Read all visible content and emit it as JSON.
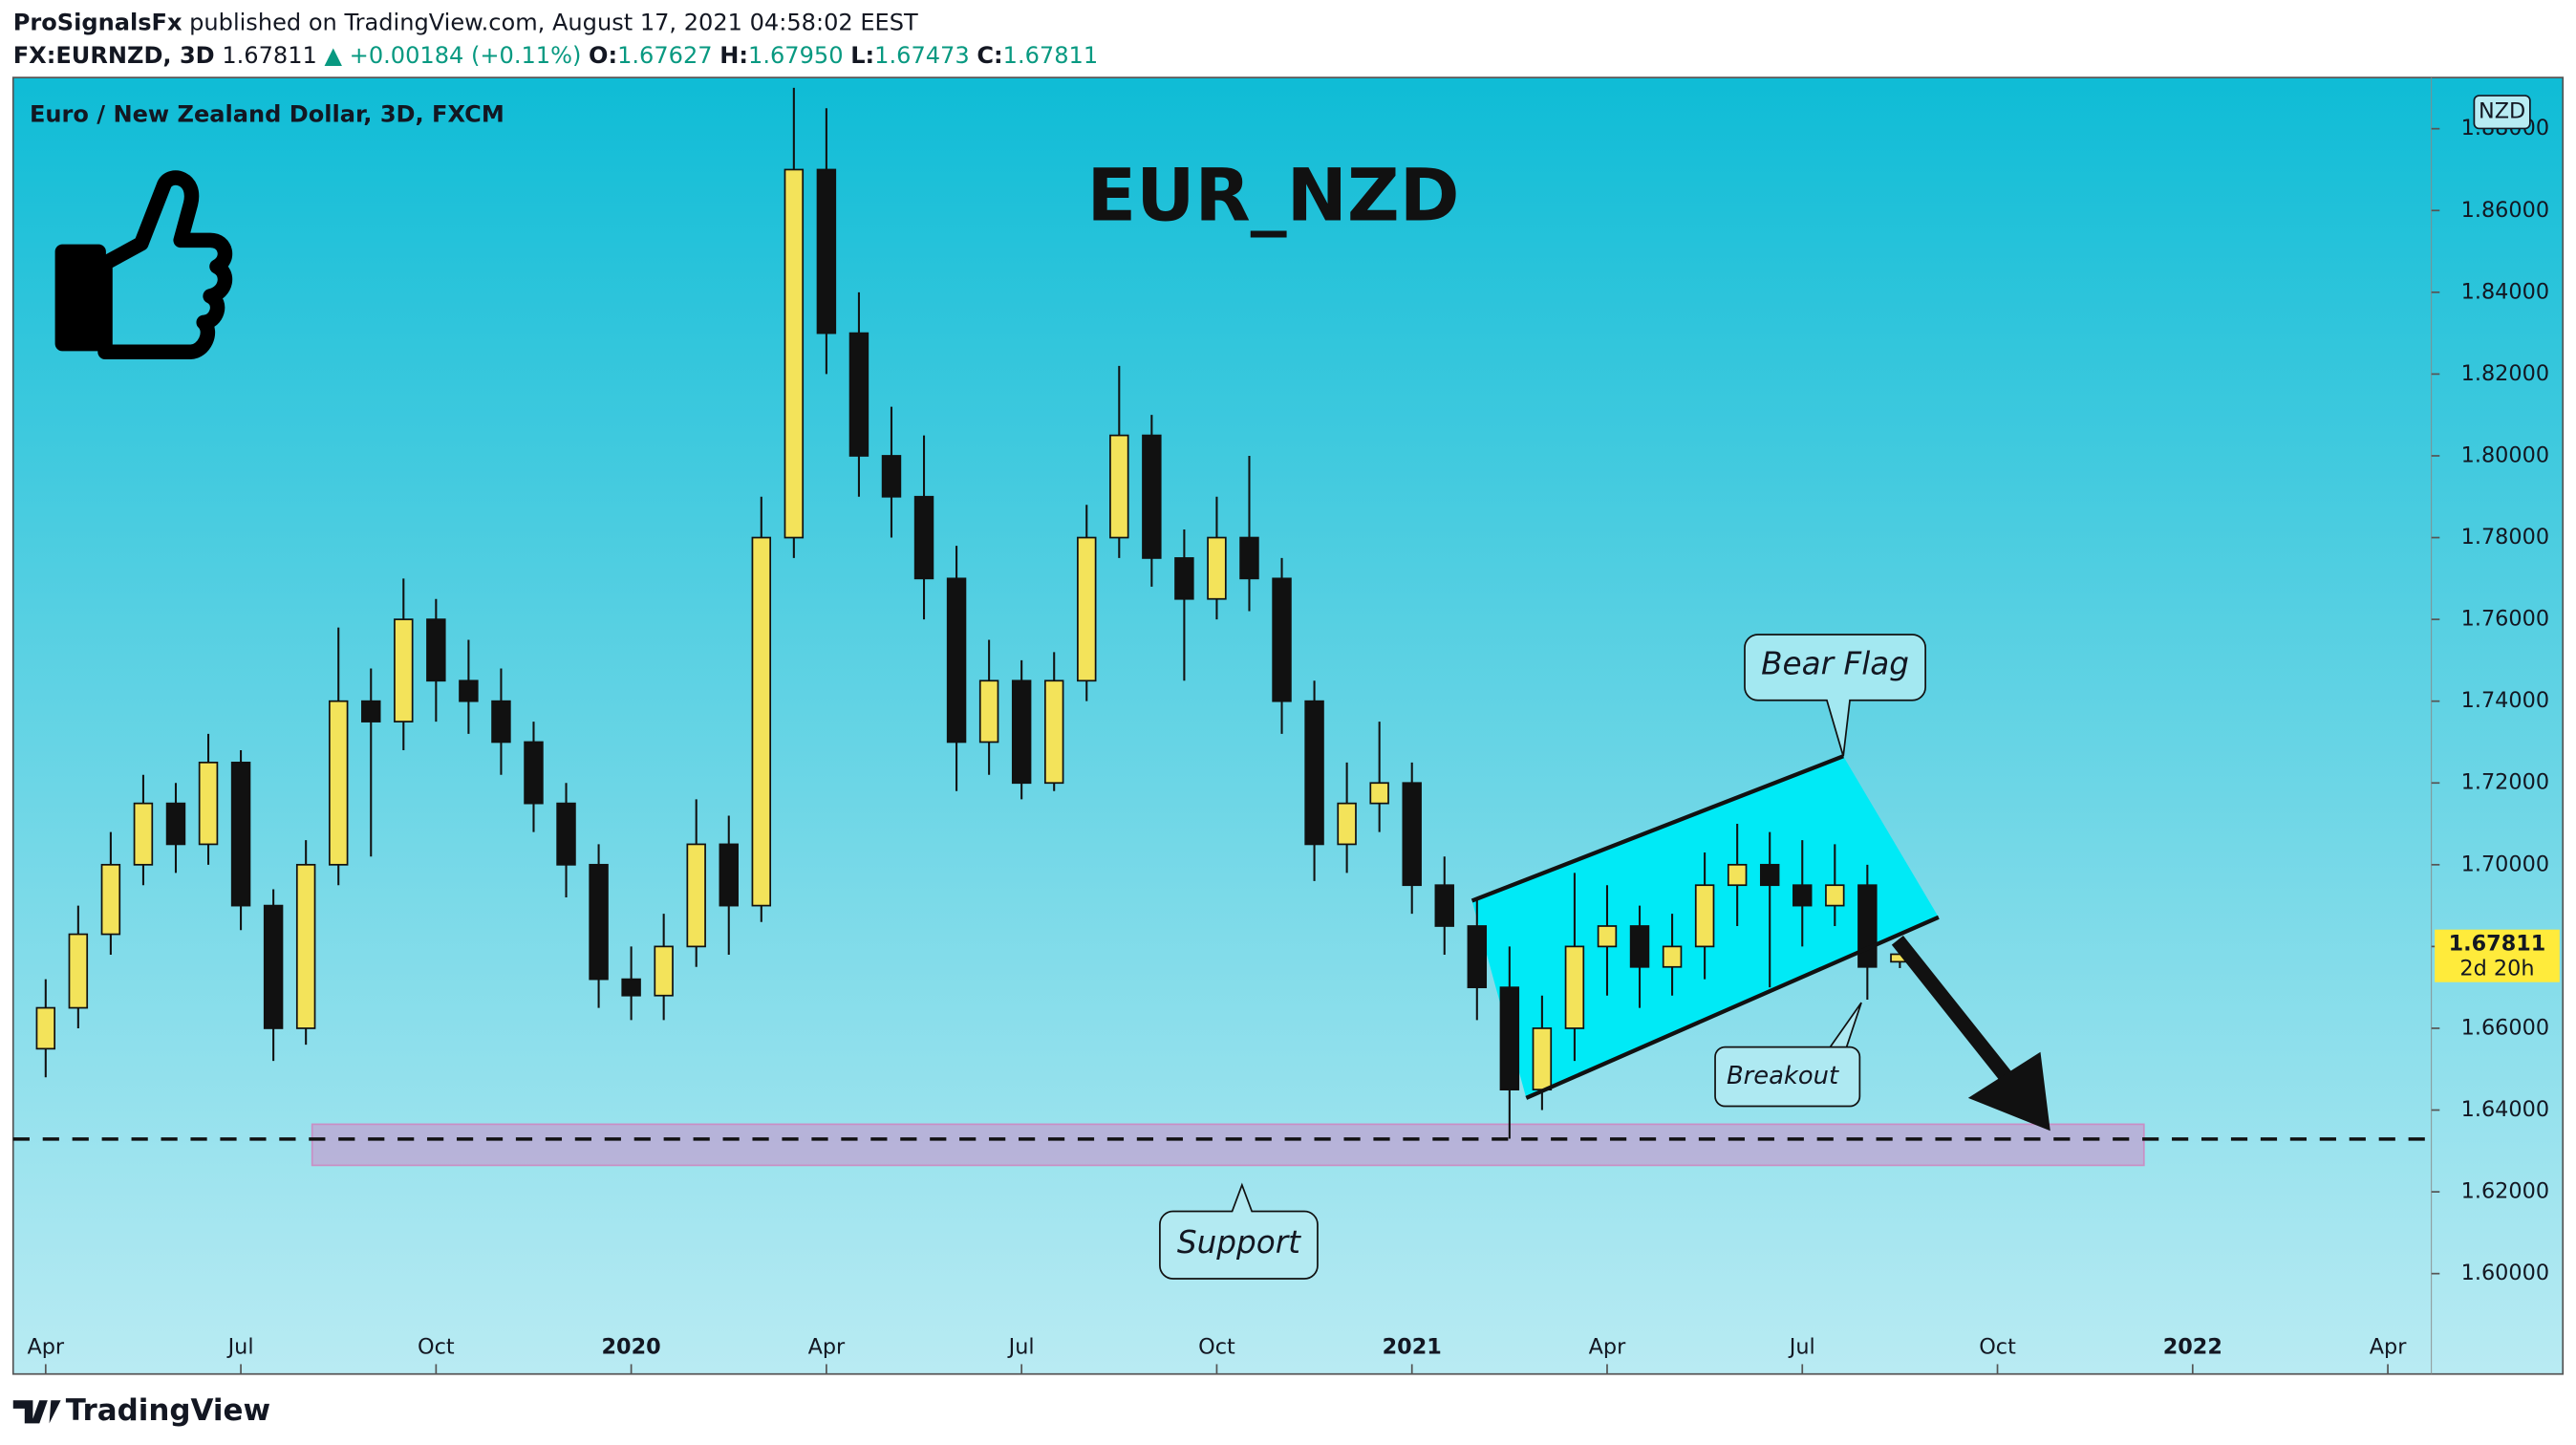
{
  "header": {
    "publisher": "ProSignalsFx",
    "published": "published on TradingView.com, August 17, 2021 04:58:02 EEST",
    "symbol": "FX:EURNZD, 3D",
    "last": "1.67811",
    "change": "▲ +0.00184 (+0.11%)",
    "o_label": "O:",
    "o": "1.67627",
    "h_label": "H:",
    "h": "1.67950",
    "l_label": "L:",
    "l": "1.67473",
    "c_label": "C:",
    "c": "1.67811"
  },
  "footer": "TradingView",
  "chart_data": {
    "type": "candlestick",
    "title": "EUR_NZD",
    "subtitle": "Euro / New Zealand Dollar, 3D, FXCM",
    "currency": "NZD",
    "countdown": "2d 20h",
    "up_color": "#f3e35a",
    "down_color": "#111111",
    "annotations": [
      "Bear Flag",
      "Breakout",
      "Support"
    ],
    "x": [
      3,
      3.5,
      4,
      4.5,
      5,
      5.5,
      6,
      6.5,
      7,
      7.5,
      8,
      8.5,
      9,
      9.5,
      10,
      10.5,
      11,
      11.5,
      12,
      12.5,
      13,
      13.5,
      14,
      14.5,
      15,
      15.5,
      16,
      16.5,
      17,
      17.5,
      18,
      18.5,
      19,
      19.5,
      20,
      20.5,
      21,
      21.5,
      22,
      22.5,
      23,
      23.5,
      24,
      24.5,
      25,
      25.5,
      26,
      26.5,
      27,
      27.5,
      28,
      28.5,
      29,
      29.5,
      30,
      30.5,
      31,
      31.5
    ],
    "open": [
      1.655,
      1.665,
      1.683,
      1.7,
      1.715,
      1.705,
      1.725,
      1.69,
      1.66,
      1.7,
      1.74,
      1.735,
      1.76,
      1.745,
      1.74,
      1.73,
      1.715,
      1.7,
      1.672,
      1.668,
      1.68,
      1.705,
      1.69,
      1.78,
      1.87,
      1.83,
      1.8,
      1.79,
      1.77,
      1.73,
      1.745,
      1.72,
      1.745,
      1.78,
      1.805,
      1.775,
      1.765,
      1.78,
      1.77,
      1.74,
      1.705,
      1.715,
      1.72,
      1.695,
      1.685,
      1.67,
      1.645,
      1.66,
      1.68,
      1.685,
      1.675,
      1.68,
      1.695,
      1.7,
      1.695,
      1.69,
      1.695,
      1.67627
    ],
    "high": [
      1.672,
      1.69,
      1.708,
      1.722,
      1.72,
      1.732,
      1.728,
      1.694,
      1.706,
      1.758,
      1.748,
      1.77,
      1.765,
      1.755,
      1.748,
      1.735,
      1.72,
      1.705,
      1.68,
      1.688,
      1.716,
      1.712,
      1.79,
      1.89,
      1.885,
      1.84,
      1.812,
      1.805,
      1.778,
      1.755,
      1.75,
      1.752,
      1.788,
      1.822,
      1.81,
      1.782,
      1.79,
      1.8,
      1.775,
      1.745,
      1.725,
      1.735,
      1.725,
      1.702,
      1.692,
      1.68,
      1.668,
      1.698,
      1.695,
      1.69,
      1.688,
      1.703,
      1.71,
      1.708,
      1.706,
      1.705,
      1.7,
      1.6795
    ],
    "low": [
      1.648,
      1.66,
      1.678,
      1.695,
      1.698,
      1.7,
      1.684,
      1.652,
      1.656,
      1.695,
      1.702,
      1.728,
      1.735,
      1.732,
      1.722,
      1.708,
      1.692,
      1.665,
      1.662,
      1.662,
      1.675,
      1.678,
      1.686,
      1.775,
      1.82,
      1.79,
      1.78,
      1.76,
      1.718,
      1.722,
      1.716,
      1.718,
      1.74,
      1.775,
      1.768,
      1.745,
      1.76,
      1.762,
      1.732,
      1.696,
      1.698,
      1.708,
      1.688,
      1.678,
      1.662,
      1.633,
      1.64,
      1.652,
      1.668,
      1.665,
      1.668,
      1.672,
      1.685,
      1.67,
      1.68,
      1.685,
      1.667,
      1.67473
    ],
    "close": [
      1.665,
      1.683,
      1.7,
      1.715,
      1.705,
      1.725,
      1.69,
      1.66,
      1.7,
      1.74,
      1.735,
      1.76,
      1.745,
      1.74,
      1.73,
      1.715,
      1.7,
      1.672,
      1.668,
      1.68,
      1.705,
      1.69,
      1.78,
      1.87,
      1.83,
      1.8,
      1.79,
      1.77,
      1.73,
      1.745,
      1.72,
      1.745,
      1.78,
      1.805,
      1.775,
      1.765,
      1.78,
      1.77,
      1.74,
      1.705,
      1.715,
      1.72,
      1.695,
      1.685,
      1.67,
      1.645,
      1.66,
      1.68,
      1.685,
      1.675,
      1.68,
      1.695,
      1.7,
      1.695,
      1.69,
      1.695,
      1.675,
      1.67811
    ],
    "xlim": [
      2.5,
      39.67
    ],
    "xticks": [
      {
        "value": 3,
        "label": "Apr"
      },
      {
        "value": 6,
        "label": "Jul"
      },
      {
        "value": 9,
        "label": "Oct"
      },
      {
        "value": 12,
        "label": "2020"
      },
      {
        "value": 15,
        "label": "Apr"
      },
      {
        "value": 18,
        "label": "Jul"
      },
      {
        "value": 21,
        "label": "Oct"
      },
      {
        "value": 24,
        "label": "2021"
      },
      {
        "value": 27,
        "label": "Apr"
      },
      {
        "value": 30,
        "label": "Jul"
      },
      {
        "value": 33,
        "label": "Oct"
      },
      {
        "value": 36,
        "label": "2022"
      },
      {
        "value": 39,
        "label": "Apr"
      }
    ],
    "ylim": [
      1.5879,
      1.8893
    ],
    "yticks": [
      {
        "value": 1.6,
        "label": "1.60000"
      },
      {
        "value": 1.62,
        "label": "1.62000"
      },
      {
        "value": 1.64,
        "label": "1.64000"
      },
      {
        "value": 1.66,
        "label": "1.66000"
      },
      {
        "value": 1.68,
        "label": "1.68000"
      },
      {
        "value": 1.7,
        "label": "1.70000"
      },
      {
        "value": 1.72,
        "label": "1.72000"
      },
      {
        "value": 1.74,
        "label": "1.74000"
      },
      {
        "value": 1.76,
        "label": "1.76000"
      },
      {
        "value": 1.78,
        "label": "1.78000"
      },
      {
        "value": 1.8,
        "label": "1.80000"
      },
      {
        "value": 1.82,
        "label": "1.82000"
      },
      {
        "value": 1.84,
        "label": "1.84000"
      },
      {
        "value": 1.86,
        "label": "1.86000"
      },
      {
        "value": 1.88,
        "label": "1.88000"
      }
    ]
  }
}
